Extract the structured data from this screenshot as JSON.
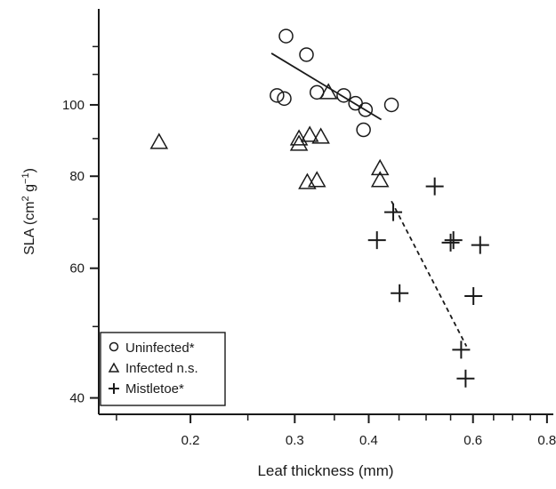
{
  "chart_data": {
    "type": "scatter",
    "xlabel": "Leaf thickness (mm)",
    "ylabel_main": "SLA (cm",
    "ylabel_sup1": "2",
    "ylabel_mid": " g",
    "ylabel_sup2": "−1",
    "ylabel_end": ")",
    "x_scale": "log",
    "y_scale": "log",
    "xlim": [
      0.14,
      0.82
    ],
    "ylim": [
      38,
      135
    ],
    "x_ticks": [
      0.2,
      0.3,
      0.4,
      0.6,
      0.8
    ],
    "x_tick_labels": [
      "0.2",
      "0.3",
      "0.4",
      "0.6",
      "0.8"
    ],
    "x_minor_ticks": [
      0.15,
      0.25,
      0.35,
      0.45,
      0.5,
      0.55,
      0.65,
      0.7,
      0.75
    ],
    "y_ticks": [
      40,
      60,
      80,
      100
    ],
    "y_tick_labels": [
      "40",
      "60",
      "80",
      "100"
    ],
    "y_minor_ticks": [
      50,
      70,
      90,
      110,
      120
    ],
    "legend_position": "bottom-left",
    "grid": false,
    "series": [
      {
        "name": "Uninfected*",
        "marker": "circle",
        "points": [
          [
            0.29,
            124
          ],
          [
            0.314,
            117
          ],
          [
            0.28,
            103
          ],
          [
            0.288,
            102
          ],
          [
            0.327,
            104
          ],
          [
            0.363,
            103
          ],
          [
            0.38,
            100.5
          ],
          [
            0.395,
            98.5
          ],
          [
            0.392,
            92.5
          ],
          [
            0.437,
            100
          ]
        ],
        "fit": {
          "style": "solid",
          "from": [
            0.274,
            117.5
          ],
          "to": [
            0.42,
            95.5
          ]
        }
      },
      {
        "name": "Infected n.s.",
        "marker": "triangle",
        "points": [
          [
            0.177,
            89
          ],
          [
            0.305,
            90
          ],
          [
            0.305,
            88.5
          ],
          [
            0.318,
            91
          ],
          [
            0.332,
            90.5
          ],
          [
            0.315,
            78.5
          ],
          [
            0.327,
            79
          ],
          [
            0.342,
            104
          ],
          [
            0.418,
            82
          ],
          [
            0.418,
            79
          ]
        ]
      },
      {
        "name": "Mistletoe*",
        "marker": "cross",
        "points": [
          [
            0.44,
            71.5
          ],
          [
            0.413,
            65.5
          ],
          [
            0.451,
            55.5
          ],
          [
            0.517,
            77.5
          ],
          [
            0.55,
            65
          ],
          [
            0.556,
            65.5
          ],
          [
            0.617,
            64.5
          ],
          [
            0.601,
            55
          ],
          [
            0.573,
            46.5
          ],
          [
            0.583,
            42.5
          ]
        ],
        "fit": {
          "style": "dashed",
          "from": [
            0.437,
            74
          ],
          "to": [
            0.585,
            47
          ]
        }
      }
    ]
  }
}
